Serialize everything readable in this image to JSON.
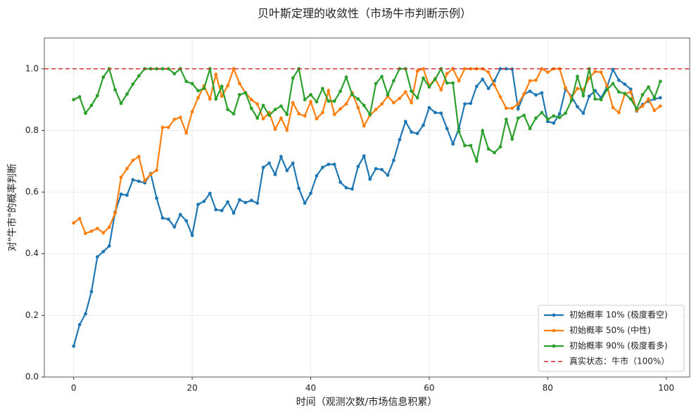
{
  "chart_data": {
    "type": "line",
    "title": "贝叶斯定理的收敛性（市场牛市判断示例）",
    "x_label": "时间（观测次数/市场信息积累）",
    "y_label": "对\"牛市\"的概率判断",
    "x": [
      0,
      1,
      2,
      3,
      4,
      5,
      6,
      7,
      8,
      9,
      10,
      11,
      12,
      13,
      14,
      15,
      16,
      17,
      18,
      19,
      20,
      21,
      22,
      23,
      24,
      25,
      26,
      27,
      28,
      29,
      30,
      31,
      32,
      33,
      34,
      35,
      36,
      37,
      38,
      39,
      40,
      41,
      42,
      43,
      44,
      45,
      46,
      47,
      48,
      49,
      50,
      51,
      52,
      53,
      54,
      55,
      56,
      57,
      58,
      59,
      60,
      61,
      62,
      63,
      64,
      65,
      66,
      67,
      68,
      69,
      70,
      71,
      72,
      73,
      74,
      75,
      76,
      77,
      78,
      79,
      80,
      81,
      82,
      83,
      84,
      85,
      86,
      87,
      88,
      89,
      90,
      91,
      92,
      93,
      94,
      95,
      96,
      97,
      98,
      99
    ],
    "series": [
      {
        "name": "初始概率 10% (极度看空)",
        "color": "#1f77b4",
        "values": [
          0.1,
          0.17,
          0.205,
          0.277,
          0.39,
          0.407,
          0.425,
          0.535,
          0.593,
          0.59,
          0.64,
          0.635,
          0.63,
          0.66,
          0.58,
          0.516,
          0.512,
          0.487,
          0.527,
          0.507,
          0.46,
          0.56,
          0.57,
          0.596,
          0.543,
          0.54,
          0.568,
          0.532,
          0.575,
          0.566,
          0.573,
          0.564,
          0.68,
          0.694,
          0.657,
          0.715,
          0.67,
          0.694,
          0.612,
          0.564,
          0.596,
          0.653,
          0.68,
          0.69,
          0.69,
          0.632,
          0.614,
          0.61,
          0.683,
          0.717,
          0.642,
          0.676,
          0.673,
          0.655,
          0.703,
          0.77,
          0.829,
          0.795,
          0.79,
          0.817,
          0.874,
          0.858,
          0.856,
          0.806,
          0.756,
          0.806,
          0.886,
          0.888,
          0.943,
          0.966,
          0.936,
          0.961,
          1.0,
          1.0,
          0.999,
          0.87,
          0.918,
          0.927,
          0.915,
          0.922,
          0.829,
          0.824,
          0.854,
          0.934,
          0.911,
          0.877,
          0.856,
          0.911,
          0.929,
          0.906,
          0.941,
          0.998,
          0.963,
          0.95,
          0.934,
          0.863,
          0.884,
          0.895,
          0.902,
          0.906
        ]
      },
      {
        "name": "初始概率 50% (中性)",
        "color": "#ff7f0e",
        "values": [
          0.5,
          0.514,
          0.466,
          0.473,
          0.482,
          0.468,
          0.486,
          0.532,
          0.648,
          0.676,
          0.703,
          0.715,
          0.637,
          0.658,
          0.671,
          0.81,
          0.81,
          0.836,
          0.842,
          0.792,
          0.861,
          0.906,
          0.945,
          0.902,
          0.982,
          0.911,
          0.945,
          1.0,
          0.952,
          0.922,
          0.9,
          0.886,
          0.838,
          0.858,
          0.804,
          0.84,
          0.801,
          0.89,
          0.854,
          0.847,
          0.893,
          0.838,
          0.858,
          0.929,
          0.852,
          0.87,
          0.886,
          0.922,
          0.874,
          0.815,
          0.849,
          0.868,
          0.886,
          0.911,
          0.89,
          0.904,
          0.925,
          0.89,
          0.993,
          1.0,
          0.945,
          0.968,
          0.932,
          0.984,
          1.0,
          0.961,
          1.0,
          1.0,
          1.0,
          1.0,
          0.989,
          0.947,
          0.909,
          0.872,
          0.872,
          0.886,
          0.918,
          0.961,
          0.963,
          1.0,
          0.989,
          1.0,
          1.0,
          0.938,
          0.906,
          0.936,
          0.932,
          0.97,
          0.991,
          0.989,
          0.945,
          0.874,
          0.858,
          0.918,
          0.925,
          0.865,
          0.879,
          0.902,
          0.865,
          0.879
        ]
      },
      {
        "name": "初始概率 90% (极度看多)",
        "color": "#2ca02c",
        "values": [
          0.9,
          0.909,
          0.856,
          0.881,
          0.913,
          0.973,
          1.0,
          0.932,
          0.888,
          0.918,
          0.95,
          0.977,
          1.0,
          1.0,
          1.0,
          1.0,
          1.0,
          0.984,
          1.0,
          0.959,
          0.952,
          0.929,
          0.936,
          1.0,
          0.902,
          0.943,
          0.868,
          0.854,
          0.916,
          0.922,
          0.872,
          0.84,
          0.881,
          0.849,
          0.868,
          0.879,
          0.852,
          0.97,
          1.0,
          0.9,
          0.916,
          0.893,
          0.936,
          0.895,
          0.895,
          0.927,
          0.973,
          0.916,
          0.902,
          0.881,
          0.852,
          0.952,
          0.975,
          0.916,
          0.961,
          1.0,
          1.0,
          0.927,
          0.906,
          0.97,
          0.941,
          0.966,
          1.0,
          0.954,
          0.954,
          0.797,
          0.751,
          0.751,
          0.701,
          0.799,
          0.74,
          0.728,
          0.747,
          0.836,
          0.772,
          0.84,
          0.849,
          0.806,
          0.84,
          0.858,
          0.836,
          0.847,
          0.842,
          0.856,
          0.897,
          0.975,
          0.913,
          1.0,
          0.902,
          0.9,
          0.932,
          0.952,
          0.925,
          0.92,
          0.902,
          0.87,
          0.916,
          0.941,
          0.906,
          0.959
        ]
      }
    ],
    "reference_line": {
      "name": "真实状态：牛市（100%）",
      "color": "#d62728",
      "value": 1.0
    },
    "xlim": [
      -4.95,
      103.95
    ],
    "ylim": [
      0,
      1.1
    ],
    "xticks": [
      0,
      20,
      40,
      60,
      80,
      100
    ],
    "yticks": [
      {
        "value": 0,
        "label": "0.0"
      },
      {
        "value": 0.2,
        "label": "0.2"
      },
      {
        "value": 0.4,
        "label": "0.4"
      },
      {
        "value": 0.6,
        "label": "0.6"
      },
      {
        "value": 0.8,
        "label": "0.8"
      },
      {
        "value": 1.0,
        "label": "1.0"
      }
    ],
    "grid": true,
    "legend": "lower right"
  }
}
